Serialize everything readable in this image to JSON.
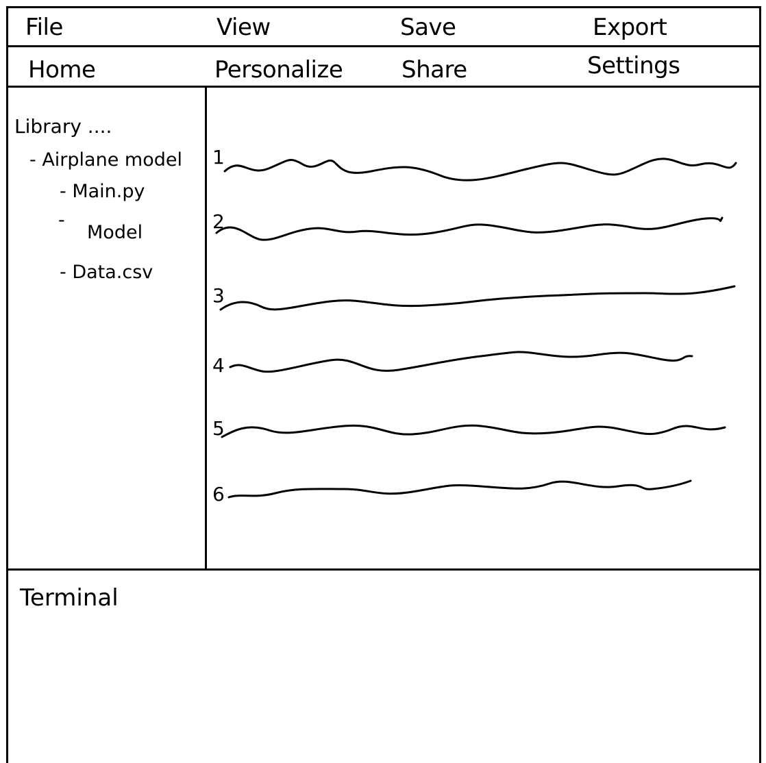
{
  "menubar": {
    "items": [
      {
        "label": "File"
      },
      {
        "label": "View"
      },
      {
        "label": "Save"
      },
      {
        "label": "Export"
      }
    ]
  },
  "tabbar": {
    "items": [
      {
        "label": "Home"
      },
      {
        "label": "Personalize"
      },
      {
        "label": "Share"
      },
      {
        "label": "Settings"
      }
    ]
  },
  "sidebar": {
    "title": "Library ....",
    "tree": [
      {
        "label": "- Airplane model"
      },
      {
        "label": "- Main.py"
      },
      {
        "label": "-"
      },
      {
        "label": "Model"
      },
      {
        "label": "- Data.csv"
      }
    ]
  },
  "editor": {
    "line_numbers": [
      "1",
      "2",
      "3",
      "4",
      "5",
      "6"
    ]
  },
  "terminal": {
    "title": "Terminal"
  },
  "colors": {
    "ink": "#000000",
    "background": "#ffffff"
  }
}
